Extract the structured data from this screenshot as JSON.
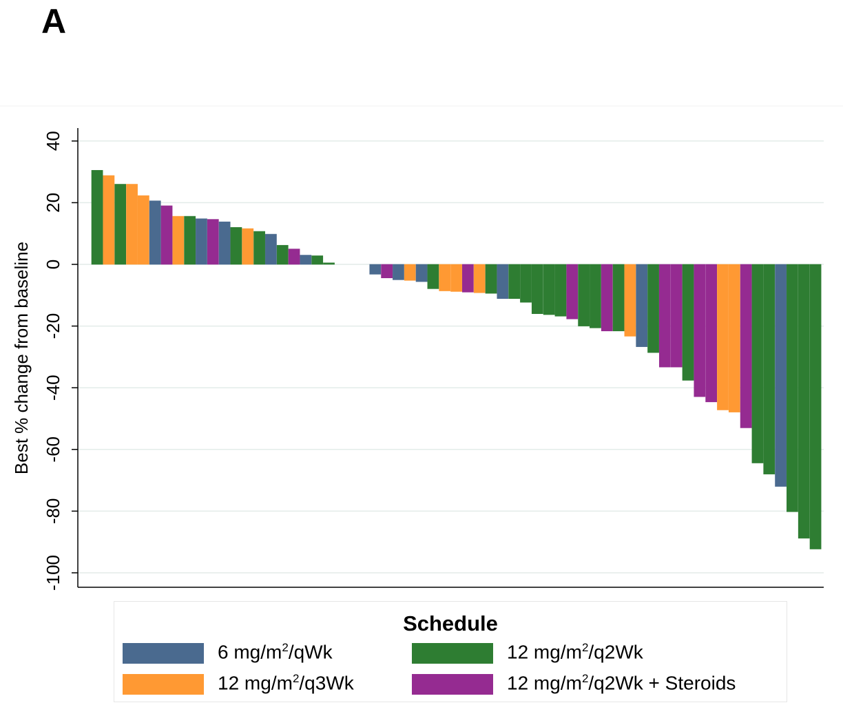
{
  "panel_label": "A",
  "colors": {
    "6 mg/m2/qWk": "#4a6a8f",
    "12 mg/m2/q3Wk": "#ff9933",
    "12 mg/m2/q2Wk": "#2e7d32",
    "12 mg/m2/q2Wk + Steroids": "#952b91"
  },
  "chart_data": {
    "type": "bar",
    "ylabel": "Best % change from baseline",
    "ylim": [
      -104,
      44
    ],
    "yticks": [
      "40",
      "20",
      "0",
      "-20",
      "-40",
      "-60",
      "-80",
      "-100"
    ],
    "ytick_values": [
      40,
      20,
      0,
      -20,
      -40,
      -60,
      -80,
      -100
    ],
    "grid": true,
    "legend_placement": "bottom",
    "bars": [
      {
        "value": 30.5,
        "group": "12 mg/m2/q2Wk"
      },
      {
        "value": 28.8,
        "group": "12 mg/m2/q3Wk"
      },
      {
        "value": 26.0,
        "group": "12 mg/m2/q2Wk"
      },
      {
        "value": 26.0,
        "group": "12 mg/m2/q3Wk"
      },
      {
        "value": 22.3,
        "group": "12 mg/m2/q3Wk"
      },
      {
        "value": 20.6,
        "group": "6 mg/m2/qWk"
      },
      {
        "value": 19.0,
        "group": "12 mg/m2/q2Wk + Steroids"
      },
      {
        "value": 15.6,
        "group": "12 mg/m2/q3Wk"
      },
      {
        "value": 15.6,
        "group": "12 mg/m2/q2Wk"
      },
      {
        "value": 14.8,
        "group": "6 mg/m2/qWk"
      },
      {
        "value": 14.6,
        "group": "12 mg/m2/q2Wk + Steroids"
      },
      {
        "value": 13.8,
        "group": "6 mg/m2/qWk"
      },
      {
        "value": 12.0,
        "group": "12 mg/m2/q2Wk"
      },
      {
        "value": 11.6,
        "group": "12 mg/m2/q3Wk"
      },
      {
        "value": 10.7,
        "group": "12 mg/m2/q2Wk"
      },
      {
        "value": 9.8,
        "group": "6 mg/m2/qWk"
      },
      {
        "value": 6.2,
        "group": "12 mg/m2/q2Wk"
      },
      {
        "value": 5.0,
        "group": "12 mg/m2/q2Wk + Steroids"
      },
      {
        "value": 3.0,
        "group": "6 mg/m2/qWk"
      },
      {
        "value": 2.8,
        "group": "12 mg/m2/q2Wk"
      },
      {
        "value": 0.5,
        "group": "12 mg/m2/q2Wk"
      },
      {
        "value": 0,
        "group": "6 mg/m2/qWk"
      },
      {
        "value": 0,
        "group": "6 mg/m2/qWk"
      },
      {
        "value": 0,
        "group": "6 mg/m2/qWk"
      },
      {
        "value": -3.2,
        "group": "6 mg/m2/qWk"
      },
      {
        "value": -4.4,
        "group": "12 mg/m2/q2Wk + Steroids"
      },
      {
        "value": -5.0,
        "group": "6 mg/m2/qWk"
      },
      {
        "value": -5.2,
        "group": "12 mg/m2/q3Wk"
      },
      {
        "value": -5.6,
        "group": "6 mg/m2/qWk"
      },
      {
        "value": -7.9,
        "group": "12 mg/m2/q2Wk"
      },
      {
        "value": -8.6,
        "group": "12 mg/m2/q3Wk"
      },
      {
        "value": -8.8,
        "group": "12 mg/m2/q3Wk"
      },
      {
        "value": -9.0,
        "group": "12 mg/m2/q2Wk + Steroids"
      },
      {
        "value": -9.2,
        "group": "12 mg/m2/q3Wk"
      },
      {
        "value": -9.4,
        "group": "12 mg/m2/q2Wk"
      },
      {
        "value": -11.1,
        "group": "6 mg/m2/qWk"
      },
      {
        "value": -11.1,
        "group": "12 mg/m2/q2Wk"
      },
      {
        "value": -12.3,
        "group": "12 mg/m2/q2Wk"
      },
      {
        "value": -16.0,
        "group": "12 mg/m2/q2Wk"
      },
      {
        "value": -16.3,
        "group": "12 mg/m2/q2Wk"
      },
      {
        "value": -16.8,
        "group": "12 mg/m2/q2Wk"
      },
      {
        "value": -17.7,
        "group": "12 mg/m2/q2Wk + Steroids"
      },
      {
        "value": -20.0,
        "group": "12 mg/m2/q2Wk"
      },
      {
        "value": -20.6,
        "group": "12 mg/m2/q2Wk"
      },
      {
        "value": -21.6,
        "group": "12 mg/m2/q2Wk + Steroids"
      },
      {
        "value": -21.6,
        "group": "12 mg/m2/q2Wk"
      },
      {
        "value": -23.3,
        "group": "12 mg/m2/q3Wk"
      },
      {
        "value": -26.7,
        "group": "6 mg/m2/qWk"
      },
      {
        "value": -28.6,
        "group": "12 mg/m2/q2Wk"
      },
      {
        "value": -33.3,
        "group": "12 mg/m2/q2Wk + Steroids"
      },
      {
        "value": -33.3,
        "group": "12 mg/m2/q2Wk + Steroids"
      },
      {
        "value": -37.6,
        "group": "12 mg/m2/q2Wk"
      },
      {
        "value": -42.9,
        "group": "12 mg/m2/q2Wk + Steroids"
      },
      {
        "value": -44.6,
        "group": "12 mg/m2/q2Wk + Steroids"
      },
      {
        "value": -47.2,
        "group": "12 mg/m2/q3Wk"
      },
      {
        "value": -47.9,
        "group": "12 mg/m2/q3Wk"
      },
      {
        "value": -53.0,
        "group": "12 mg/m2/q2Wk + Steroids"
      },
      {
        "value": -64.4,
        "group": "12 mg/m2/q2Wk"
      },
      {
        "value": -68.0,
        "group": "12 mg/m2/q2Wk"
      },
      {
        "value": -72.0,
        "group": "6 mg/m2/qWk"
      },
      {
        "value": -80.2,
        "group": "12 mg/m2/q2Wk"
      },
      {
        "value": -88.8,
        "group": "12 mg/m2/q2Wk"
      },
      {
        "value": -92.3,
        "group": "12 mg/m2/q2Wk"
      }
    ]
  },
  "legend": {
    "title": "Schedule",
    "items": [
      {
        "pre": "6 mg/m",
        "sup": "2",
        "post": "/qWk",
        "group": "6 mg/m2/qWk"
      },
      {
        "pre": "12 mg/m",
        "sup": "2",
        "post": "/q2Wk",
        "group": "12 mg/m2/q2Wk"
      },
      {
        "pre": "12 mg/m",
        "sup": "2",
        "post": "/q3Wk",
        "group": "12 mg/m2/q3Wk"
      },
      {
        "pre": "12 mg/m",
        "sup": "2",
        "post": "/q2Wk + Steroids",
        "group": "12 mg/m2/q2Wk + Steroids"
      }
    ]
  }
}
